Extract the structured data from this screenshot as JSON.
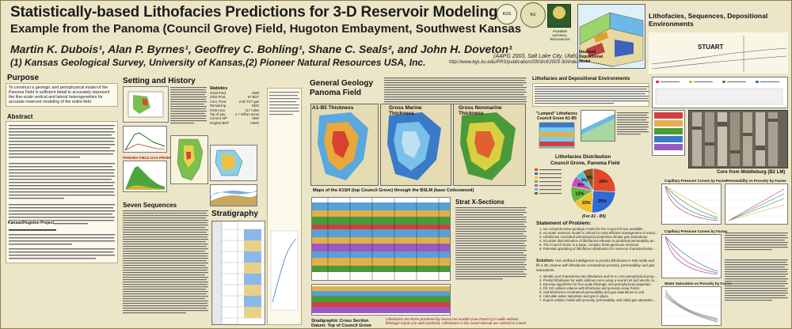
{
  "header": {
    "title_line1": "Statistically-based Lithofacies Predictions for 3-D Reservoir Modeling:",
    "title_line2": "Example from the Panoma (Council Grove) Field, Hugoton Embayment, Southwest Kansas",
    "authors": "Martin K. Dubois¹, Alan P. Byrnes¹, Geoffrey C. Bohling¹, Shane C. Seals², and John H. Doveton¹",
    "affiliations": "(1) Kansas Geological Survey, University of Kansas,(2) Pioneer Natural Resources USA, Inc.",
    "meeting": "(AAPG 2003, Salt Lake City, Utah)",
    "url": "http://www.kgs.ku.edu/PRS/publication/2003/ofr2003-30/index.html",
    "logo_left": "KGS",
    "logo_mid": "KU",
    "logo_right": "PIONEER NATURAL RESOURCES"
  },
  "sections": {
    "purpose": "Purpose",
    "purpose_text": "To construct a geologic and petrophysical model of the Panoma Field in sufficient detail to accurately represent the fine-scale vertical and lateral heterogeneities for accurate reservoir modeling of the entire field",
    "abstract": "Abstract",
    "setting": "Setting and History",
    "statistics": "Statistics",
    "seven_sequences": "Seven Sequences",
    "stratigraphy": "Stratigraphy",
    "general_geology": "General Geology",
    "panoma_field": "Panoma Field",
    "lithofacies_env": "Lithofacies and Depositional Environments",
    "lithofacies_seq": "Lithofacies, Sequences, Depositional Environments",
    "strat_x": "Strat X-Sections",
    "statement": "Statement of Problem:",
    "solution": "Solution:",
    "lithofacies_dist": "Lithofacies Distribution",
    "council_grove_pie": "Council Grove, Panoma Field",
    "kansas_hugoton": "Kansas/Hugoton Project"
  },
  "labels": {
    "thick_a1": "A1-B5 Thickness",
    "thick_gm": "Gross Marine Thickness",
    "thick_gnm": "Gross Nonmarine Thickness",
    "maps_caption": "Maps of the A1SH (top Council Grove) through the BSLM (base Cottonwood)",
    "strat_caption1": "Stratigraphic Cross Section",
    "strat_caption2": "Datum: Top of Council Grove",
    "strat_note": "Lithofacies are those predicted by neural net models (see Panel 2) in wells without lithologic inputs (no well-symbols). Lithofacies in the cored interval are colored to match",
    "panoma_chart_title": "PANOMA FIELD GAS PRODUCTION",
    "lumped_title": "\"Lumped\" Lithofacies Council Grove A1-B5",
    "idealized": "Idealized Depositional Model",
    "core_caption": "Core from Middleburg (B2 LM)",
    "stuart": "STUART",
    "cap_press": "Capillary Pressure Curves by Facies",
    "permeab": "Permeability vs Porosity by Facies",
    "cap_press2": "Capillary Pressure Curves by Facies",
    "sw_poro": "Water Saturation vs Porosity by Facies"
  },
  "statistics": [
    [
      "Initial Prod.",
      "1969"
    ],
    [
      "2002 Prod.",
      "67 BCF"
    ],
    [
      "Cum. Prod.",
      "2.66 TCF gas"
    ],
    [
      "Remaining",
      "2003"
    ],
    [
      "Field Area",
      "117 miles"
    ],
    [
      "Top of pay",
      "1.7 million acres"
    ],
    [
      "Current SIP",
      "<65#"
    ],
    [
      "Original BHP",
      "<450#"
    ]
  ],
  "pie": {
    "slices": [
      {
        "label": "26%",
        "value": 26,
        "color": "#e04a2a"
      },
      {
        "label": "25%",
        "value": 25,
        "color": "#2f6ad6"
      },
      {
        "label": "15%",
        "value": 15,
        "color": "#f2c12e"
      },
      {
        "label": "12%",
        "value": 12,
        "color": "#64b83c"
      },
      {
        "label": "8%",
        "value": 8,
        "color": "#cc4ec6"
      },
      {
        "label": "6%",
        "value": 6,
        "color": "#4fc4d8"
      },
      {
        "label": "8%",
        "value": 8,
        "color": "#8a5a2b"
      }
    ],
    "caption": "(For A1 - B5)"
  },
  "problem_items": [
    "1. No comprehensive geologic model for the Council Grove available.",
    "2. Accurate reservoir model is critical for most efficient management of remaining resources in this large asset.",
    "3. Lithofacies controlled petrophysical properties dictate gas saturations.",
    "4. Accurate discrimination of lithofacies relevant to predicted permeability and gas volume.",
    "5. The Council Grove is a large, complex heterogeneous reservoir.",
    "6. Potential upscaling of lithofacies distribution for reservoir characterization and analysis of large heterogeneous reservoirs like the Panoma Field is impractical by traditional methods."
  ],
  "solution_text": "Use artificial intelligence to predict lithofacies in 500 wells and fill a 3D volume with lithofacies constrained porosity, permeability and gas saturations.",
  "steps": [
    "1. Identify and characterize key lithofacies and tie to core petrophysical properties.",
    "2. Predict lithofacies for wells without cores using a neural net and electric log curves and machine-recognized indicators.",
    "3. Develop algorithms for fine-scale lithologic and petrophysical properties.",
    "4. Fill 3-D cellular volume with lithofacies and porosity using Petrel.",
    "5. Add lithofacies-constrained permeability and gas saturations to cell.",
    "6. Calculate water saturation and gas in place.",
    "7. Export cellular model with porosity, permeability, and initial gas saturations to a reservoir simulator."
  ]
}
